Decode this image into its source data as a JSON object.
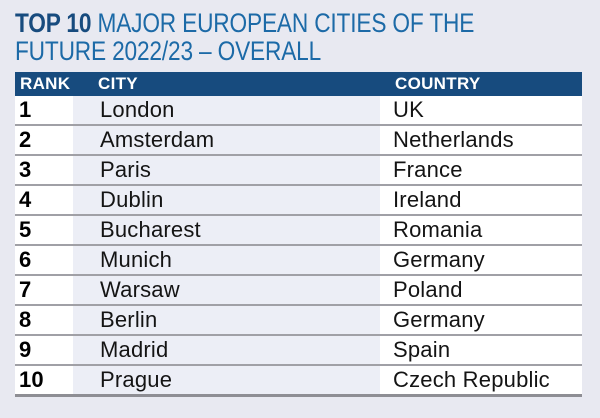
{
  "title": {
    "bold": "TOP 10",
    "rest": " MAJOR EUROPEAN CITIES OF THE FUTURE 2022/23 – OVERALL"
  },
  "table": {
    "columns": [
      "RANK",
      "CITY",
      "COUNTRY"
    ],
    "rows": [
      {
        "rank": "1",
        "city": "London",
        "country": "UK"
      },
      {
        "rank": "2",
        "city": "Amsterdam",
        "country": "Netherlands"
      },
      {
        "rank": "3",
        "city": "Paris",
        "country": "France"
      },
      {
        "rank": "4",
        "city": "Dublin",
        "country": "Ireland"
      },
      {
        "rank": "5",
        "city": "Bucharest",
        "country": "Romania"
      },
      {
        "rank": "6",
        "city": "Munich",
        "country": "Germany"
      },
      {
        "rank": "7",
        "city": "Warsaw",
        "country": "Poland"
      },
      {
        "rank": "8",
        "city": "Berlin",
        "country": "Germany"
      },
      {
        "rank": "9",
        "city": "Madrid",
        "country": "Spain"
      },
      {
        "rank": "10",
        "city": "Prague",
        "country": "Czech Republic"
      }
    ]
  },
  "chart_data": {
    "type": "table",
    "title": "TOP 10 MAJOR EUROPEAN CITIES OF THE FUTURE 2022/23 – OVERALL",
    "columns": [
      "RANK",
      "CITY",
      "COUNTRY"
    ],
    "rows": [
      [
        "1",
        "London",
        "UK"
      ],
      [
        "2",
        "Amsterdam",
        "Netherlands"
      ],
      [
        "3",
        "Paris",
        "France"
      ],
      [
        "4",
        "Dublin",
        "Ireland"
      ],
      [
        "5",
        "Bucharest",
        "Romania"
      ],
      [
        "6",
        "Munich",
        "Germany"
      ],
      [
        "7",
        "Warsaw",
        "Poland"
      ],
      [
        "8",
        "Berlin",
        "Germany"
      ],
      [
        "9",
        "Madrid",
        "Spain"
      ],
      [
        "10",
        "Prague",
        "Czech Republic"
      ]
    ]
  },
  "colors": {
    "page_bg": "#e8e9f1",
    "header_bar": "#174b7e",
    "title_bold": "#174b7e",
    "title_rest": "#1c6aa7",
    "city_column_bg": "#eceef6",
    "row_divider": "#a0a0a6",
    "bottom_border": "#8e8e94",
    "header_text": "#ffffff",
    "body_text": "#141414"
  }
}
